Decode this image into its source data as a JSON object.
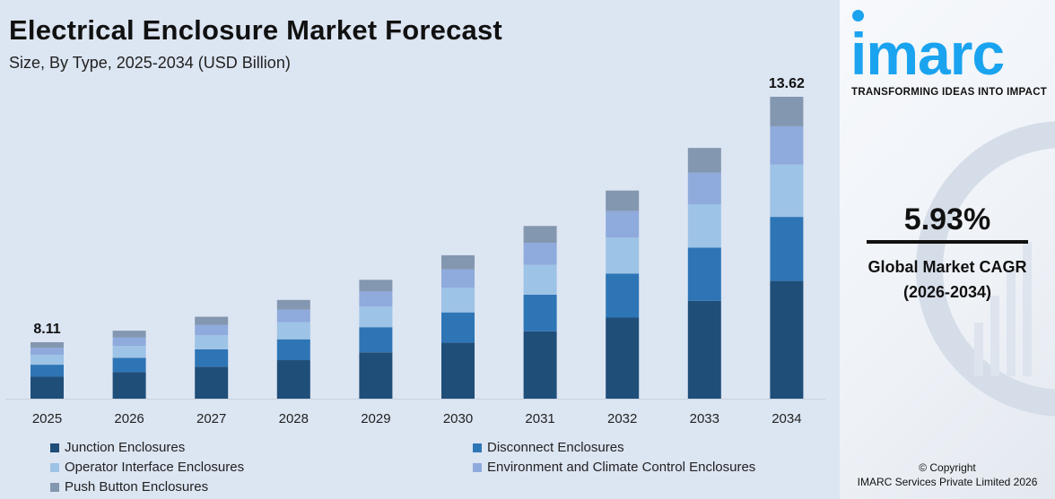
{
  "title": "Electrical Enclosure Market Forecast",
  "subtitle": "Size, By Type, 2025-2034 (USD Billion)",
  "chart_data": {
    "type": "bar",
    "stacked": true,
    "categories": [
      "2025",
      "2026",
      "2027",
      "2028",
      "2029",
      "2030",
      "2031",
      "2032",
      "2033",
      "2034"
    ],
    "series": [
      {
        "name": "Junction Enclosures",
        "color": "#1f4e79",
        "values": [
          3.16,
          3.35,
          3.55,
          3.76,
          3.98,
          4.22,
          4.47,
          4.73,
          5.02,
          5.31
        ]
      },
      {
        "name": "Disconnect Enclosures",
        "color": "#2e75b6",
        "values": [
          1.72,
          1.82,
          1.93,
          2.04,
          2.16,
          2.29,
          2.43,
          2.57,
          2.73,
          2.89
        ]
      },
      {
        "name": "Operator Interface Enclosures",
        "color": "#9dc3e6",
        "values": [
          1.4,
          1.49,
          1.57,
          1.67,
          1.77,
          1.87,
          1.98,
          2.1,
          2.22,
          2.36
        ]
      },
      {
        "name": "Environment and Climate Control Enclosures",
        "color": "#8faadc",
        "values": [
          1.03,
          1.09,
          1.16,
          1.22,
          1.3,
          1.37,
          1.46,
          1.54,
          1.63,
          1.73
        ]
      },
      {
        "name": "Push Button Enclosures",
        "color": "#8497b0",
        "values": [
          0.8,
          0.84,
          0.89,
          0.95,
          1.0,
          1.07,
          1.12,
          1.2,
          1.26,
          1.33
        ]
      }
    ],
    "totals": [
      8.11,
      8.59,
      9.1,
      9.64,
      10.21,
      10.82,
      11.46,
      12.14,
      12.86,
      13.62
    ],
    "data_labels": [
      {
        "category": "2025",
        "text": "8.11"
      },
      {
        "category": "2034",
        "text": "13.62"
      }
    ],
    "grid": false,
    "legend_placement": "bottom"
  },
  "brand": {
    "logo": "imarc",
    "tagline": "TRANSFORMING IDEAS INTO IMPACT",
    "color": "#1aa3ef"
  },
  "cagr": {
    "value": "5.93%",
    "label": "Global Market CAGR",
    "period": "(2026-2034)"
  },
  "copyright": {
    "line1": "© Copyright",
    "line2": "IMARC Services Private Limited 2026"
  }
}
